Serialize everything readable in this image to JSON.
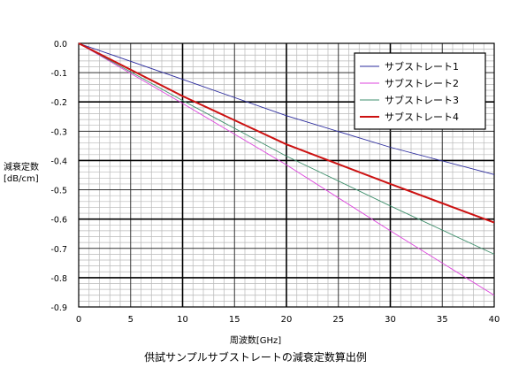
{
  "chart_data": {
    "type": "line",
    "caption": "供試サンプルサブストレートの減衰定数算出例",
    "xlabel": "周波数[GHz]",
    "ylabel_line1": "減衰定数",
    "ylabel_line2": "[dB/cm]",
    "xlim": [
      0,
      40
    ],
    "ylim": [
      -0.9,
      0.0
    ],
    "xticks": [
      "0",
      "5",
      "10",
      "15",
      "20",
      "25",
      "30",
      "35",
      "40"
    ],
    "yticks": [
      "0.0",
      "-0.1",
      "-0.2",
      "-0.3",
      "-0.4",
      "-0.5",
      "-0.6",
      "-0.7",
      "-0.8",
      "-0.9"
    ],
    "grid": true,
    "legend_position": "top-right",
    "series": [
      {
        "name": "サブストレート1",
        "color": "#2b2b9e",
        "x": [
          0,
          10,
          20,
          30,
          40
        ],
        "y": [
          0,
          -0.123,
          -0.247,
          -0.355,
          -0.448
        ]
      },
      {
        "name": "サブストレート2",
        "color": "#dd44dd",
        "x": [
          0,
          10,
          20,
          30,
          40
        ],
        "y": [
          0,
          -0.205,
          -0.415,
          -0.64,
          -0.86
        ]
      },
      {
        "name": "サブストレート3",
        "color": "#3f8f6c",
        "x": [
          0,
          10,
          20,
          30,
          40
        ],
        "y": [
          0,
          -0.195,
          -0.385,
          -0.555,
          -0.72
        ]
      },
      {
        "name": "サブストレート4",
        "color": "#cc1111",
        "x": [
          0,
          10,
          20,
          30,
          40
        ],
        "y": [
          0,
          -0.18,
          -0.345,
          -0.48,
          -0.612
        ]
      }
    ]
  }
}
